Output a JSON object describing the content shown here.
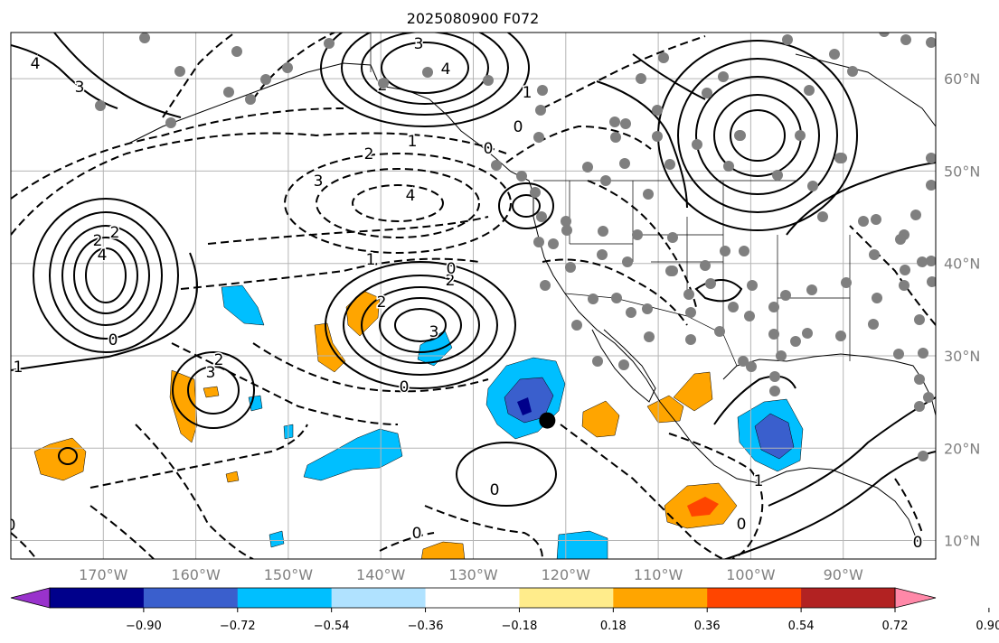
{
  "title": "2025080900 F072",
  "map": {
    "lon_labels": [
      "170°W",
      "160°W",
      "150°W",
      "140°W",
      "130°W",
      "120°W",
      "110°W",
      "100°W",
      "90°W"
    ],
    "lat_labels": [
      "60°N",
      "50°N",
      "40°N",
      "30°N",
      "20°N",
      "10°N"
    ],
    "lon_values": [
      -170,
      -160,
      -150,
      -140,
      -130,
      -120,
      -110,
      -100,
      -90
    ],
    "lat_values": [
      60,
      50,
      40,
      30,
      20,
      10
    ],
    "extent": {
      "lon_min": -180,
      "lon_max": -80,
      "lat_min": 8,
      "lat_max": 65
    },
    "contour_labels": [
      "3",
      "4",
      "2",
      "1",
      "0",
      "0",
      "2",
      "3",
      "4",
      "1",
      "2",
      "3",
      "4",
      "2",
      "0",
      "2",
      "3",
      "1",
      "2",
      "0",
      "0",
      "0",
      "1",
      "0",
      "2",
      "4",
      "3",
      "0",
      "1",
      "0",
      "0"
    ],
    "marker": {
      "lon": -122,
      "lat": 23
    }
  },
  "colorbar": {
    "ticks": [
      "−0.90",
      "−0.72",
      "−0.54",
      "−0.36",
      "−0.18",
      "0.18",
      "0.36",
      "0.54",
      "0.72",
      "0.90"
    ],
    "colors": [
      "#9932cc",
      "#00008b",
      "#3a5fcd",
      "#00bfff",
      "#b0e2ff",
      "#ffffff",
      "#ffec8b",
      "#ffa500",
      "#ff4500",
      "#b22222",
      "#ff88a8"
    ]
  }
}
